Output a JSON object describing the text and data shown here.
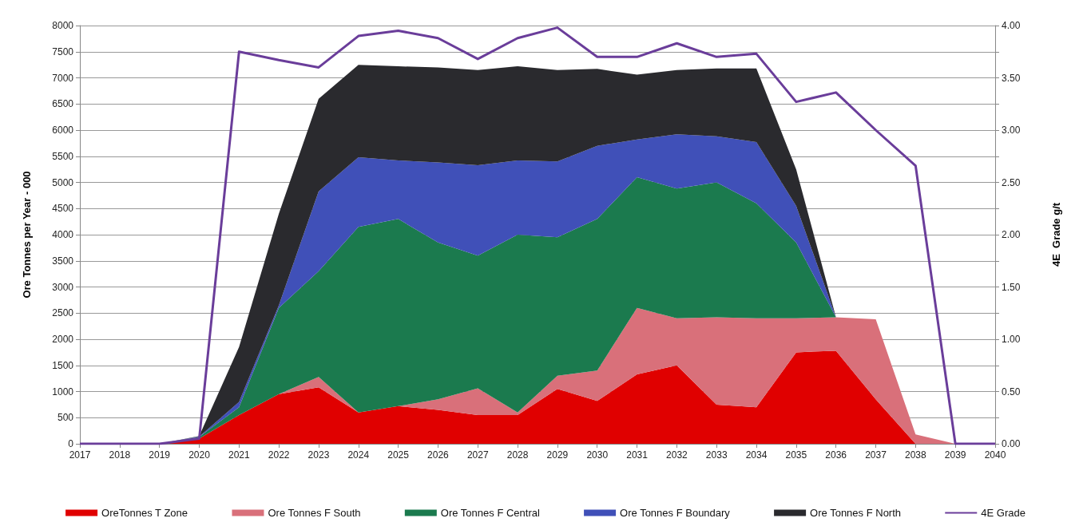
{
  "chart_data": {
    "type": "area",
    "stacked": true,
    "ylabel": "Ore Tonnes per Year - 000",
    "y2label": "4E  Grade g/t",
    "categories": [
      "2017",
      "2018",
      "2019",
      "2020",
      "2021",
      "2022",
      "2023",
      "2024",
      "2025",
      "2026",
      "2027",
      "2028",
      "2029",
      "2030",
      "2031",
      "2032",
      "2033",
      "2034",
      "2035",
      "2036",
      "2037",
      "2038",
      "2039",
      "2040"
    ],
    "series": [
      {
        "name": "OreTonnes T Zone",
        "color": "#e00000",
        "values": [
          0,
          0,
          0,
          100,
          550,
          950,
          1080,
          600,
          720,
          650,
          550,
          550,
          1050,
          820,
          1330,
          1500,
          750,
          700,
          1750,
          1780,
          850,
          0,
          0,
          0
        ]
      },
      {
        "name": "Ore Tonnes F South",
        "color": "#d9707a",
        "values": [
          0,
          0,
          0,
          0,
          0,
          0,
          200,
          0,
          0,
          200,
          510,
          50,
          250,
          580,
          1270,
          900,
          1670,
          1700,
          650,
          640,
          1530,
          180,
          0,
          0
        ]
      },
      {
        "name": "Ore Tonnes F Central",
        "color": "#1b7a4e",
        "values": [
          0,
          0,
          0,
          30,
          150,
          1650,
          2020,
          3550,
          3580,
          3000,
          2540,
          3400,
          2650,
          2900,
          2500,
          2480,
          2580,
          2200,
          1450,
          0,
          0,
          0,
          0,
          0
        ]
      },
      {
        "name": "Ore Tonnes F Boundary",
        "color": "#4050b8",
        "values": [
          0,
          0,
          0,
          10,
          100,
          50,
          1530,
          1330,
          1120,
          1530,
          1730,
          1420,
          1450,
          1400,
          720,
          1040,
          880,
          1170,
          700,
          0,
          0,
          0,
          0,
          0
        ]
      },
      {
        "name": "Ore Tonnes F North",
        "color": "#2a2a2e",
        "values": [
          0,
          0,
          0,
          10,
          1050,
          1750,
          1770,
          1770,
          1800,
          1820,
          1820,
          1800,
          1750,
          1470,
          1240,
          1230,
          1300,
          1410,
          700,
          0,
          0,
          0,
          0,
          0
        ]
      },
      {
        "name": "4E Grade",
        "type": "line",
        "axis": "y2",
        "color": "#6a3d9a",
        "values": [
          0,
          0,
          0,
          0.05,
          3.75,
          3.67,
          3.6,
          3.9,
          3.95,
          3.88,
          3.68,
          3.88,
          3.98,
          3.7,
          3.7,
          3.83,
          3.7,
          3.73,
          3.27,
          3.36,
          3.0,
          2.66,
          0,
          0
        ]
      }
    ],
    "ylim": [
      0,
      8000
    ],
    "yticks": [
      0,
      500,
      1000,
      1500,
      2000,
      2500,
      3000,
      3500,
      4000,
      4500,
      5000,
      5500,
      6000,
      6500,
      7000,
      7500,
      8000
    ],
    "y2lim": [
      0,
      4
    ],
    "y2ticks": [
      {
        "value": 0,
        "label": "0.00"
      },
      {
        "value": 0.25,
        "label": null
      },
      {
        "value": 0.5,
        "label": "0.50"
      },
      {
        "value": 0.75,
        "label": null
      },
      {
        "value": 1,
        "label": "1.00"
      },
      {
        "value": 1.25,
        "label": null
      },
      {
        "value": 1.5,
        "label": "1.50"
      },
      {
        "value": 1.75,
        "label": null
      },
      {
        "value": 2,
        "label": "2.00"
      },
      {
        "value": 2.25,
        "label": null
      },
      {
        "value": 2.5,
        "label": "2.50"
      },
      {
        "value": 2.75,
        "label": null
      },
      {
        "value": 3,
        "label": "3.00"
      },
      {
        "value": 3.25,
        "label": null
      },
      {
        "value": 3.5,
        "label": "3.50"
      },
      {
        "value": 3.75,
        "label": null
      },
      {
        "value": 4,
        "label": "4.00"
      }
    ],
    "grid": "y",
    "legend": "bottom",
    "marker": "none",
    "line_style": "solid"
  }
}
